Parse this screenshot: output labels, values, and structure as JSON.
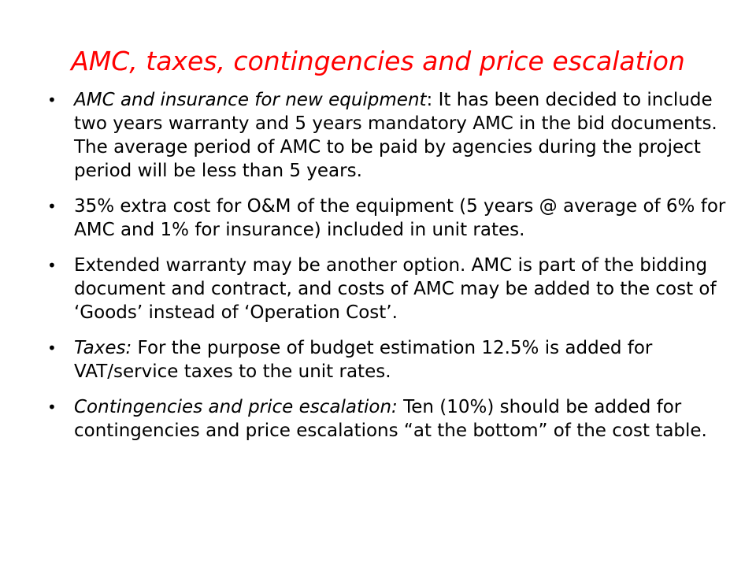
{
  "slide": {
    "title": "AMC, taxes, contingencies and price escalation",
    "bullet_glyph": "•",
    "bullets": [
      {
        "lead": "AMC and insurance for new equipment",
        "text": ": It has been decided to include two years warranty and 5 years mandatory AMC in the bid documents. The average period of AMC to be paid by agencies during the project period will be less than 5 years."
      },
      {
        "lead": "",
        "text": "35% extra cost for O&M of the equipment (5 years @ average of 6% for AMC and 1% for insurance) included in unit rates."
      },
      {
        "lead": "",
        "text": "Extended warranty may be another option. AMC is part of the bidding document and contract, and costs of AMC may be added to the cost of ‘Goods’ instead of ‘Operation Cost’."
      },
      {
        "lead": "Taxes:",
        "text": " For the purpose of budget estimation 12.5% is added for VAT/service taxes to the unit rates."
      },
      {
        "lead": "Contingencies and price escalation:",
        "text": " Ten (10%) should be added for contingencies and price escalations “at the bottom” of the cost table."
      }
    ],
    "colors": {
      "title": "#ff0000",
      "body_text": "#000000",
      "background": "#ffffff"
    }
  }
}
